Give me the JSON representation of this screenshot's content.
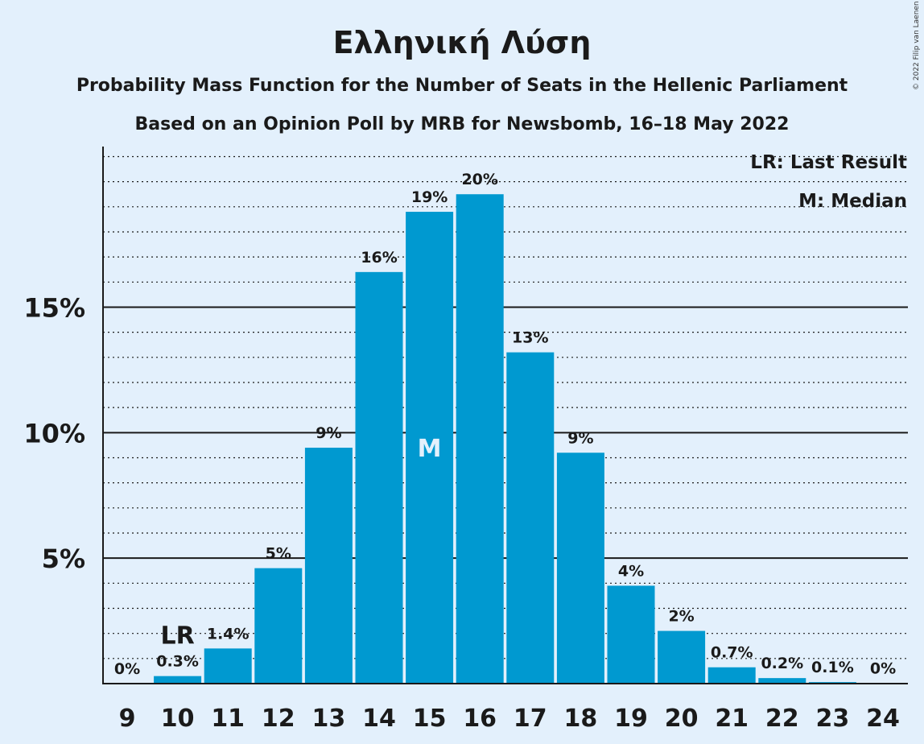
{
  "chart_data": {
    "type": "bar",
    "title": "Ελληνική Λύση",
    "subtitle": "Probability Mass Function for the Number of Seats in the Hellenic Parliament",
    "subtitle2": "Based on an Opinion Poll by MRB for Newsbomb, 16–18 May 2022",
    "copyright": "© 2022 Filip van Laenen",
    "categories": [
      "9",
      "10",
      "11",
      "12",
      "13",
      "14",
      "15",
      "16",
      "17",
      "18",
      "19",
      "20",
      "21",
      "22",
      "23",
      "24"
    ],
    "values": [
      0,
      0.3,
      1.4,
      4.6,
      9.4,
      16.4,
      18.8,
      19.5,
      13.2,
      9.2,
      3.9,
      2.1,
      0.65,
      0.22,
      0.06,
      0.01
    ],
    "data_labels": [
      "0%",
      "0.3%",
      "1.4%",
      "5%",
      "9%",
      "16%",
      "19%",
      "20%",
      "13%",
      "9%",
      "4%",
      "2%",
      "0.7%",
      "0.2%",
      "0.1%",
      "0%"
    ],
    "ylim": [
      0,
      21.4
    ],
    "y_ticks": [
      5,
      10,
      15
    ],
    "y_tick_labels": [
      "5%",
      "10%",
      "15%"
    ],
    "minor_grid_step": 1,
    "last_result": {
      "category": "10",
      "mark": "LR"
    },
    "median": {
      "category": "15",
      "mark": "M"
    },
    "legend": [
      "LR: Last Result",
      "M: Median"
    ],
    "legend_position": "top-right",
    "colors": {
      "bar": "#0099D0",
      "background": "#E3F0FC",
      "grid": "#1a1a1a"
    }
  }
}
